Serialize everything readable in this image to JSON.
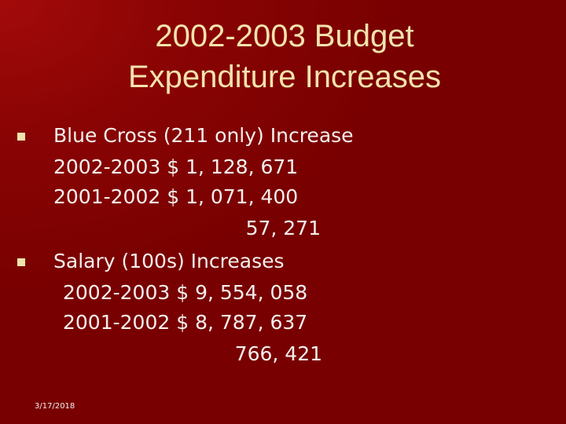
{
  "title": {
    "lines": [
      "2002-2003 Budget",
      "Expenditure Increases"
    ]
  },
  "bullets": [
    {
      "label": "Blue Cross (211 only) Increase",
      "lines": [
        "2002-2003 $ 1, 128, 671",
        "2001-2002 $ 1, 071, 400"
      ],
      "difference": "57, 271"
    },
    {
      "label": "Salary (100s) Increases",
      "lines": [
        "2002-2003 $ 9, 554, 058",
        "2001-2002 $ 8, 787, 637"
      ],
      "difference": "766, 421"
    }
  ],
  "footer": {
    "date": "3/17/2018"
  }
}
